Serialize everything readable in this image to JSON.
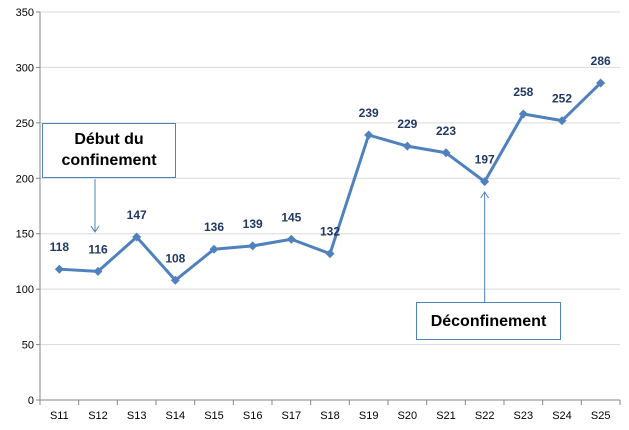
{
  "chart_data": {
    "type": "line",
    "categories": [
      "S11",
      "S12",
      "S13",
      "S14",
      "S15",
      "S16",
      "S17",
      "S18",
      "S19",
      "S20",
      "S21",
      "S22",
      "S23",
      "S24",
      "S25"
    ],
    "series": [
      {
        "values": [
          118,
          116,
          147,
          108,
          136,
          139,
          145,
          132,
          239,
          229,
          223,
          197,
          258,
          252,
          286
        ]
      }
    ],
    "ylim": [
      0,
      350
    ],
    "yticks": [
      0,
      50,
      100,
      150,
      200,
      250,
      300,
      350
    ],
    "grid": "horizontal",
    "legend": "none",
    "data_labels": true,
    "colors": {
      "line": "#4f81bd",
      "label": "#1f3864",
      "grid": "#d9d9d9"
    },
    "annotations": [
      {
        "text": "Début du confinement",
        "line1": "Début du",
        "line2": "confinement",
        "category": "S12"
      },
      {
        "text": "Déconfinement",
        "category": "S22"
      }
    ]
  }
}
